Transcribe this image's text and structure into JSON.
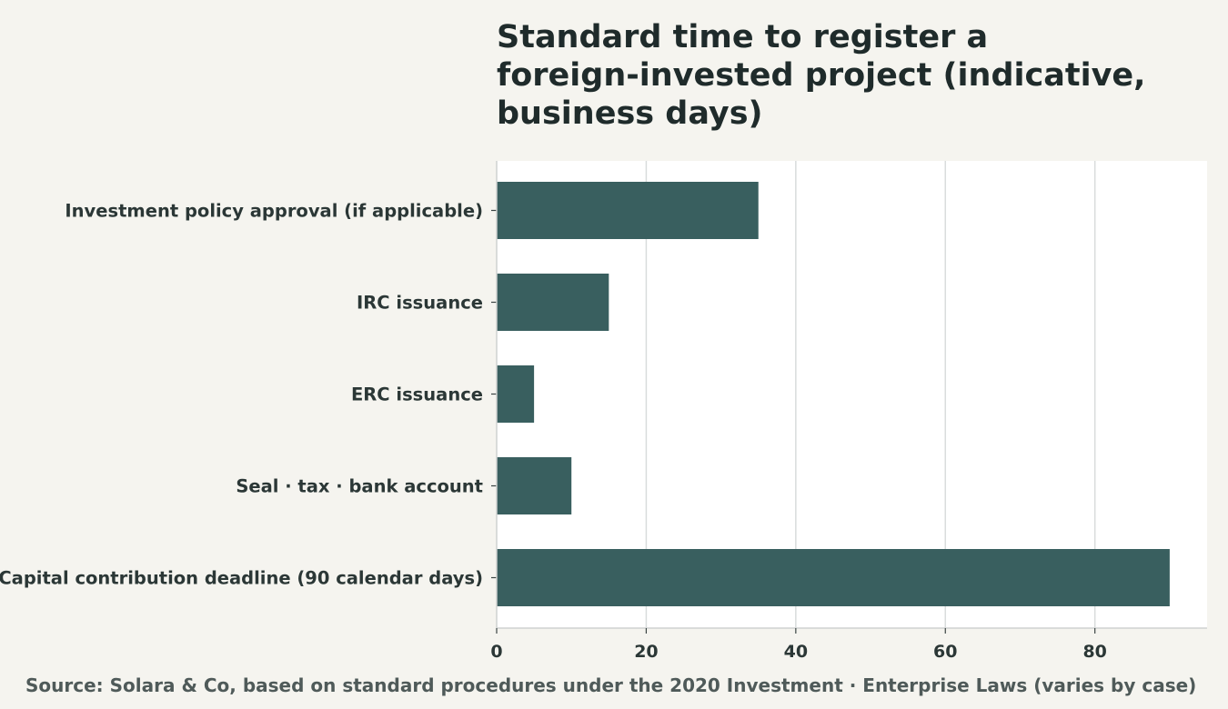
{
  "chart_data": {
    "type": "bar",
    "orientation": "horizontal",
    "title_lines": [
      "Standard time to register a",
      "foreign-invested project (indicative,",
      "business days)"
    ],
    "categories": [
      "Investment policy approval (if applicable)",
      "IRC issuance",
      "ERC issuance",
      "Seal · tax · bank account",
      "Capital contribution deadline (90 calendar days)"
    ],
    "values": [
      35,
      15,
      5,
      10,
      90
    ],
    "xlim": [
      0,
      95
    ],
    "x_ticks": [
      0,
      20,
      40,
      60,
      80
    ],
    "xlabel": "",
    "ylabel": "",
    "grid": "vertical",
    "legend": "none",
    "bar_color": "#395f5f",
    "plot_background": "#ffffff",
    "page_background": "#f5f4ef"
  },
  "source": "Source: Solara & Co, based on standard procedures under the 2020 Investment · Enterprise Laws (varies by case)"
}
